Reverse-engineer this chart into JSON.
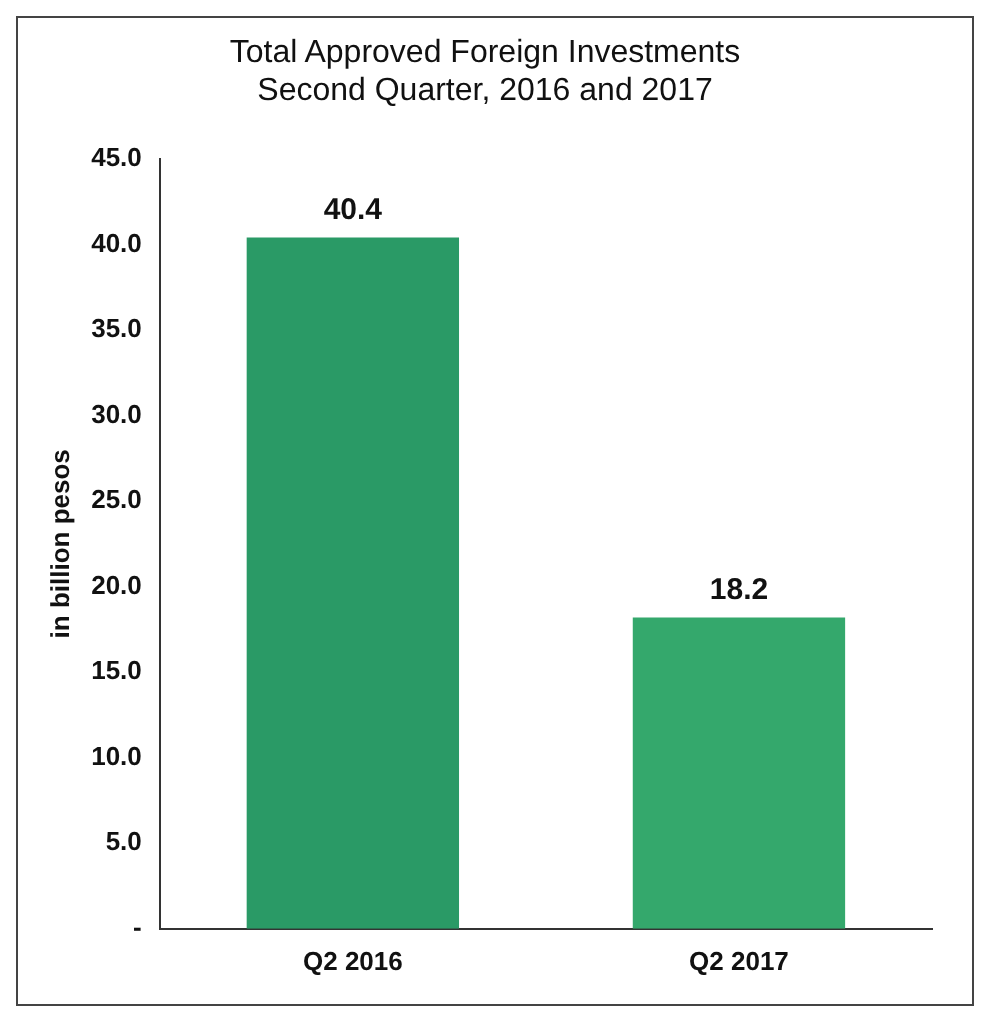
{
  "chart_data": {
    "type": "bar",
    "title": "Total Approved Foreign Investments\nSecond Quarter, 2016 and 2017",
    "categories": [
      "Q2 2016",
      "Q2 2017"
    ],
    "values": [
      40.4,
      18.2
    ],
    "colors": [
      "#2a9a66",
      "#34a86c"
    ],
    "ylabel": "in billion pesos",
    "ylim": [
      0,
      45
    ],
    "yticks": [
      {
        "value": 0,
        "label": "-"
      },
      {
        "value": 5,
        "label": "5.0"
      },
      {
        "value": 10,
        "label": "10.0"
      },
      {
        "value": 15,
        "label": "15.0"
      },
      {
        "value": 20,
        "label": "20.0"
      },
      {
        "value": 25,
        "label": "25.0"
      },
      {
        "value": 30,
        "label": "30.0"
      },
      {
        "value": 35,
        "label": "35.0"
      },
      {
        "value": 40,
        "label": "40.0"
      },
      {
        "value": 45,
        "label": "45.0"
      }
    ],
    "data_labels": true,
    "grid": false,
    "legend": false
  }
}
